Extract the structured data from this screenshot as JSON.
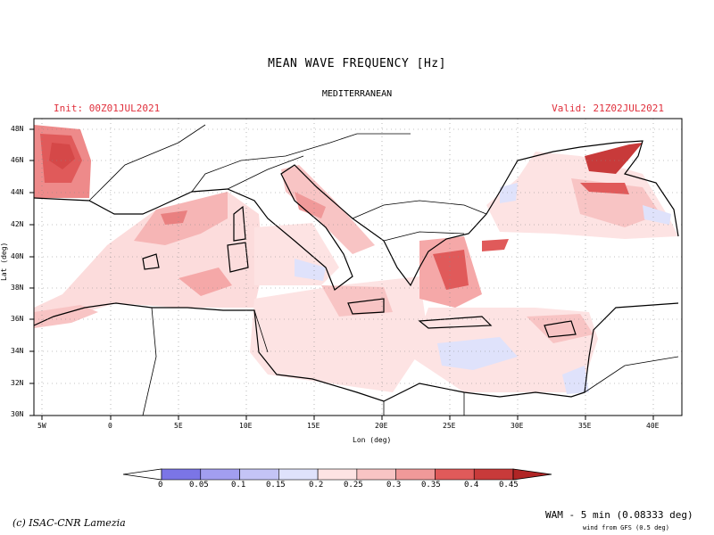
{
  "title": "MEAN WAVE FREQUENCY [Hz]",
  "region": "MEDITERRANEAN",
  "init_label": "Init: 00Z01JUL2021",
  "valid_label": "Valid: 21Z02JUL2021",
  "x_axis": {
    "label": "Lon (deg)",
    "ticks": [
      "5W",
      "0",
      "5E",
      "10E",
      "15E",
      "20E",
      "25E",
      "30E",
      "35E",
      "40E"
    ]
  },
  "y_axis": {
    "label": "Lat (deg)",
    "ticks": [
      "48N",
      "46N",
      "44N",
      "42N",
      "40N",
      "38N",
      "36N",
      "34N",
      "32N",
      "30N"
    ]
  },
  "colorbar": {
    "labels": [
      "0",
      "0.05",
      "0.1",
      "0.15",
      "0.2",
      "0.25",
      "0.3",
      "0.35",
      "0.4",
      "0.45"
    ],
    "colors": [
      "#ffffff",
      "#7b75e6",
      "#a29ef0",
      "#c4c4f6",
      "#dfe2fb",
      "#fde3e3",
      "#f8c4c4",
      "#f09999",
      "#e05a5a",
      "#c83a3a",
      "#b02525"
    ]
  },
  "colors": {
    "land": "#ffffff",
    "coastline": "#000000",
    "sea_base": "#fde6e6",
    "header_text": "#e0303c"
  },
  "credit": "(c) ISAC-CNR Lamezia",
  "model_info": "WAM - 5 min (0.08333 deg)",
  "wind_info": "wind from GFS (0.5 deg)"
}
